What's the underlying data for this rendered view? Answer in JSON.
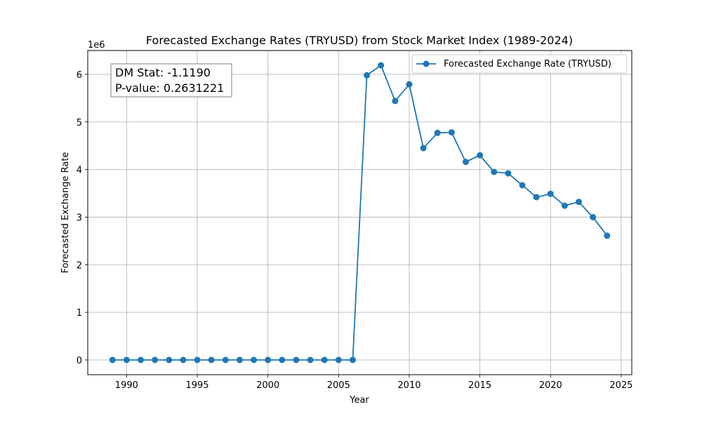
{
  "chart_data": {
    "type": "line",
    "title": "Forecasted Exchange Rates (TRYUSD) from Stock Market Index (1989-2024)",
    "xlabel": "Year",
    "ylabel": "Forecasted Exchange Rate",
    "y_offset_label": "1e6",
    "xlim": [
      1987.25,
      2025.75
    ],
    "ylim": [
      -0.31,
      6.5
    ],
    "x_ticks": [
      1990,
      1995,
      2000,
      2005,
      2010,
      2015,
      2020,
      2025
    ],
    "y_ticks": [
      0,
      1,
      2,
      3,
      4,
      5,
      6
    ],
    "grid": true,
    "legend_position": "top-right",
    "series": [
      {
        "name": "Forecasted Exchange Rate (TRYUSD)",
        "color": "#1f77b4",
        "marker": "circle",
        "x": [
          1989,
          1990,
          1991,
          1992,
          1993,
          1994,
          1995,
          1996,
          1997,
          1998,
          1999,
          2000,
          2001,
          2002,
          2003,
          2004,
          2005,
          2006,
          2007,
          2008,
          2009,
          2010,
          2011,
          2012,
          2013,
          2014,
          2015,
          2016,
          2017,
          2018,
          2019,
          2020,
          2021,
          2022,
          2023,
          2024
        ],
        "y": [
          0,
          0,
          0,
          0,
          0,
          0,
          0,
          0,
          0,
          0,
          0,
          0,
          0,
          0,
          0,
          0,
          0,
          0,
          5.98,
          6.19,
          5.44,
          5.79,
          4.45,
          4.77,
          4.78,
          4.16,
          4.3,
          3.95,
          3.92,
          3.67,
          3.42,
          3.49,
          3.24,
          3.32,
          3.0,
          2.61
        ]
      }
    ],
    "annotation": {
      "line1": "DM Stat: -1.1190",
      "line2": "P-value: 0.2631221",
      "position": "top-left"
    }
  }
}
